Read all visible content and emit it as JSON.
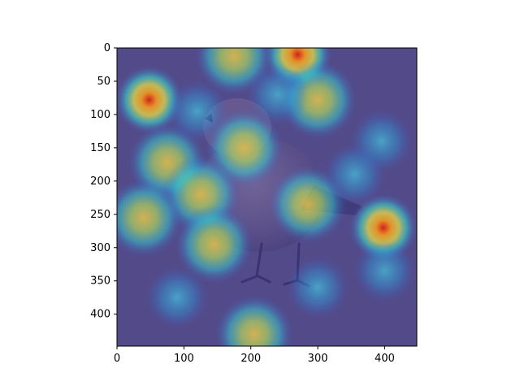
{
  "chart_data": {
    "type": "heatmap",
    "title": "",
    "xlabel": "",
    "ylabel": "",
    "xlim": [
      0,
      448
    ],
    "ylim": [
      448,
      0
    ],
    "x_ticks": [
      0,
      100,
      200,
      300,
      400
    ],
    "y_ticks": [
      0,
      50,
      100,
      150,
      200,
      250,
      300,
      350,
      400
    ],
    "x_tick_labels": [
      "0",
      "100",
      "200",
      "300",
      "400"
    ],
    "y_tick_labels": [
      "0",
      "50",
      "100",
      "150",
      "200",
      "250",
      "300",
      "350",
      "400"
    ],
    "colormap": "jet",
    "overlay_alpha": 0.55,
    "grid": false,
    "image_subject": "bird",
    "hotspots": [
      {
        "x": 48,
        "y": 78,
        "intensity": 1.0
      },
      {
        "x": 398,
        "y": 270,
        "intensity": 1.0
      },
      {
        "x": 270,
        "y": 10,
        "intensity": 0.95
      },
      {
        "x": 300,
        "y": 78,
        "intensity": 0.6
      },
      {
        "x": 175,
        "y": 12,
        "intensity": 0.55
      },
      {
        "x": 120,
        "y": 95,
        "intensity": 0.45
      },
      {
        "x": 190,
        "y": 150,
        "intensity": 0.55
      },
      {
        "x": 75,
        "y": 172,
        "intensity": 0.6
      },
      {
        "x": 125,
        "y": 220,
        "intensity": 0.5
      },
      {
        "x": 285,
        "y": 235,
        "intensity": 0.55
      },
      {
        "x": 40,
        "y": 255,
        "intensity": 0.55
      },
      {
        "x": 395,
        "y": 140,
        "intensity": 0.4
      },
      {
        "x": 145,
        "y": 295,
        "intensity": 0.5
      },
      {
        "x": 205,
        "y": 430,
        "intensity": 0.75
      },
      {
        "x": 400,
        "y": 335,
        "intensity": 0.45
      },
      {
        "x": 240,
        "y": 70,
        "intensity": 0.4
      },
      {
        "x": 355,
        "y": 190,
        "intensity": 0.4
      },
      {
        "x": 90,
        "y": 375,
        "intensity": 0.3
      },
      {
        "x": 300,
        "y": 360,
        "intensity": 0.3
      }
    ]
  }
}
